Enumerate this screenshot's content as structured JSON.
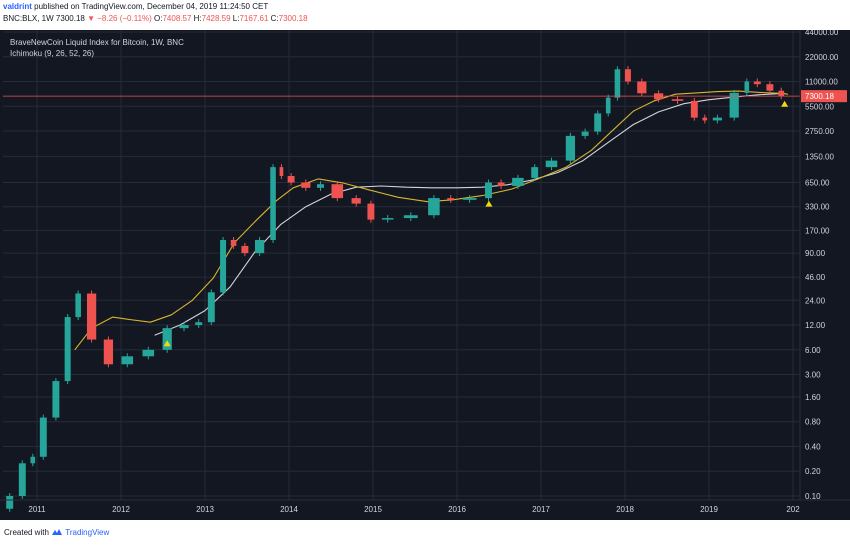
{
  "header": {
    "author": "valdrint",
    "published_text": "published on TradingView.com, December 04, 2019 11:24:50 CET",
    "symbol_line": "BNC:BLX, 1W",
    "last": "7300.18",
    "change": "−8.26 (−0.11%)",
    "open_label": "O:",
    "open": "7408.57",
    "high_label": "H:",
    "high": "7428.59",
    "low_label": "L:",
    "low": "7167.61",
    "close_label": "C:",
    "close": "7300.18"
  },
  "legend": {
    "title": "BraveNewCoin Liquid Index for Bitcoin, 1W, BNC",
    "indicator": "Ichimoku (9, 26, 52, 26)"
  },
  "footer": {
    "created_with": "Created with",
    "brand": "TradingView"
  },
  "colors": {
    "background": "#131722",
    "grid": "#262b38",
    "up": "#26a69a",
    "down": "#ef5350",
    "yellow_line": "#d8b52e",
    "white_line": "#d1d4dc",
    "price_line": "#ef5350",
    "marker": "#f5d90a"
  },
  "chart_data": {
    "type": "line",
    "scale": "log",
    "y_ticks": [
      "44000.00",
      "22000.00",
      "11000.00",
      "5500.00",
      "2750.00",
      "1350.00",
      "650.00",
      "330.00",
      "170.00",
      "90.00",
      "46.00",
      "24.00",
      "12.00",
      "6.00",
      "3.00",
      "1.60",
      "0.80",
      "0.40",
      "0.20",
      "0.10"
    ],
    "x_ticks": [
      "2011",
      "2012",
      "2013",
      "2014",
      "2015",
      "2016",
      "2017",
      "2018",
      "2019",
      "202"
    ],
    "last_price_label": "7300.18",
    "price_series": {
      "name": "",
      "x": [
        2010.6,
        2010.75,
        2010.9,
        2011.0,
        2011.15,
        2011.3,
        2011.43,
        2011.55,
        2011.75,
        2011.95,
        2012.2,
        2012.45,
        2012.65,
        2012.85,
        2013.0,
        2013.15,
        2013.28,
        2013.4,
        2013.55,
        2013.75,
        2013.87,
        2013.95,
        2014.1,
        2014.3,
        2014.45,
        2014.7,
        2014.9,
        2015.05,
        2015.3,
        2015.6,
        2015.85,
        2016.0,
        2016.3,
        2016.45,
        2016.6,
        2016.85,
        2017.0,
        2017.25,
        2017.45,
        2017.6,
        2017.75,
        2017.85,
        2017.97,
        2018.1,
        2018.3,
        2018.5,
        2018.75,
        2018.9,
        2019.0,
        2019.2,
        2019.4,
        2019.5,
        2019.65,
        2019.8,
        2019.92
      ],
      "y": [
        0.07,
        0.1,
        0.25,
        0.3,
        0.9,
        2.5,
        15,
        29,
        8,
        4,
        5,
        6,
        11,
        12,
        13,
        30,
        130,
        110,
        90,
        130,
        1000,
        780,
        650,
        560,
        620,
        420,
        360,
        230,
        240,
        260,
        420,
        400,
        420,
        650,
        590,
        740,
        1000,
        1200,
        2400,
        2700,
        4500,
        7000,
        15500,
        11000,
        7900,
        6700,
        6400,
        4000,
        3700,
        4000,
        8000,
        11000,
        10200,
        8500,
        7300
      ]
    },
    "ichimoku_yellow": {
      "x": [
        2011.45,
        2011.65,
        2011.9,
        2012.1,
        2012.35,
        2012.6,
        2012.85,
        2013.1,
        2013.35,
        2013.6,
        2013.85,
        2014.05,
        2014.35,
        2014.65,
        2014.95,
        2015.3,
        2015.65,
        2015.95,
        2016.3,
        2016.65,
        2016.95,
        2017.3,
        2017.6,
        2017.9,
        2018.1,
        2018.35,
        2018.6,
        2018.85,
        2019.1,
        2019.35,
        2019.6,
        2019.85,
        2019.94
      ],
      "y": [
        6,
        11,
        15,
        14,
        13,
        16,
        24,
        45,
        120,
        220,
        390,
        560,
        720,
        640,
        530,
        430,
        380,
        400,
        450,
        540,
        710,
        1000,
        1600,
        3100,
        4800,
        6400,
        7700,
        8000,
        8300,
        8400,
        8100,
        7900,
        7700
      ]
    },
    "ichimoku_white": {
      "x": [
        2012.4,
        2012.7,
        2013.0,
        2013.3,
        2013.6,
        2013.9,
        2014.2,
        2014.5,
        2014.8,
        2015.1,
        2015.4,
        2015.7,
        2016.0,
        2016.3,
        2016.6,
        2016.9,
        2017.2,
        2017.5,
        2017.8,
        2018.1,
        2018.4,
        2018.7,
        2019.0,
        2019.3,
        2019.6,
        2019.9
      ],
      "y": [
        9,
        12,
        18,
        35,
        95,
        200,
        330,
        470,
        570,
        590,
        570,
        560,
        560,
        570,
        610,
        700,
        860,
        1200,
        2000,
        3300,
        4700,
        5900,
        6600,
        7100,
        7600,
        7900
      ]
    },
    "markers": [
      {
        "label": "",
        "x": 2012.55,
        "y": 7.2
      },
      {
        "label": "",
        "x": 2016.38,
        "y": 360
      },
      {
        "label": "",
        "x": 2019.9,
        "y": 5900
      }
    ]
  }
}
